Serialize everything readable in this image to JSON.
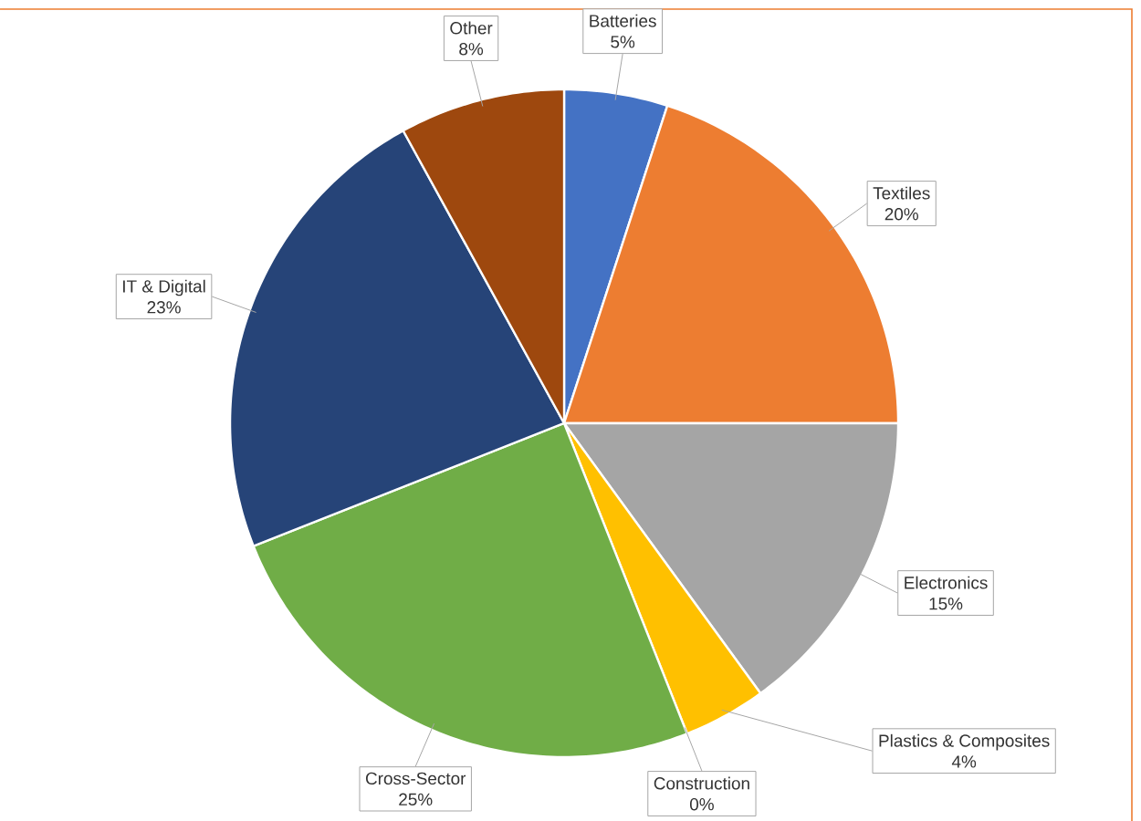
{
  "chart_data": {
    "type": "pie",
    "categories": [
      "Batteries",
      "Textiles",
      "Electronics",
      "Plastics & Composites",
      "Construction",
      "Cross-Sector",
      "IT & Digital",
      "Other"
    ],
    "values": [
      5,
      20,
      15,
      4,
      0,
      25,
      23,
      8
    ],
    "value_labels": [
      "5%",
      "20%",
      "15%",
      "4%",
      "0%",
      "25%",
      "23%",
      "8%"
    ],
    "colors": [
      "#4472c4",
      "#ed7d31",
      "#a5a5a5",
      "#ffc000",
      "#5b9bd5",
      "#70ad47",
      "#264478",
      "#9e480e"
    ]
  }
}
